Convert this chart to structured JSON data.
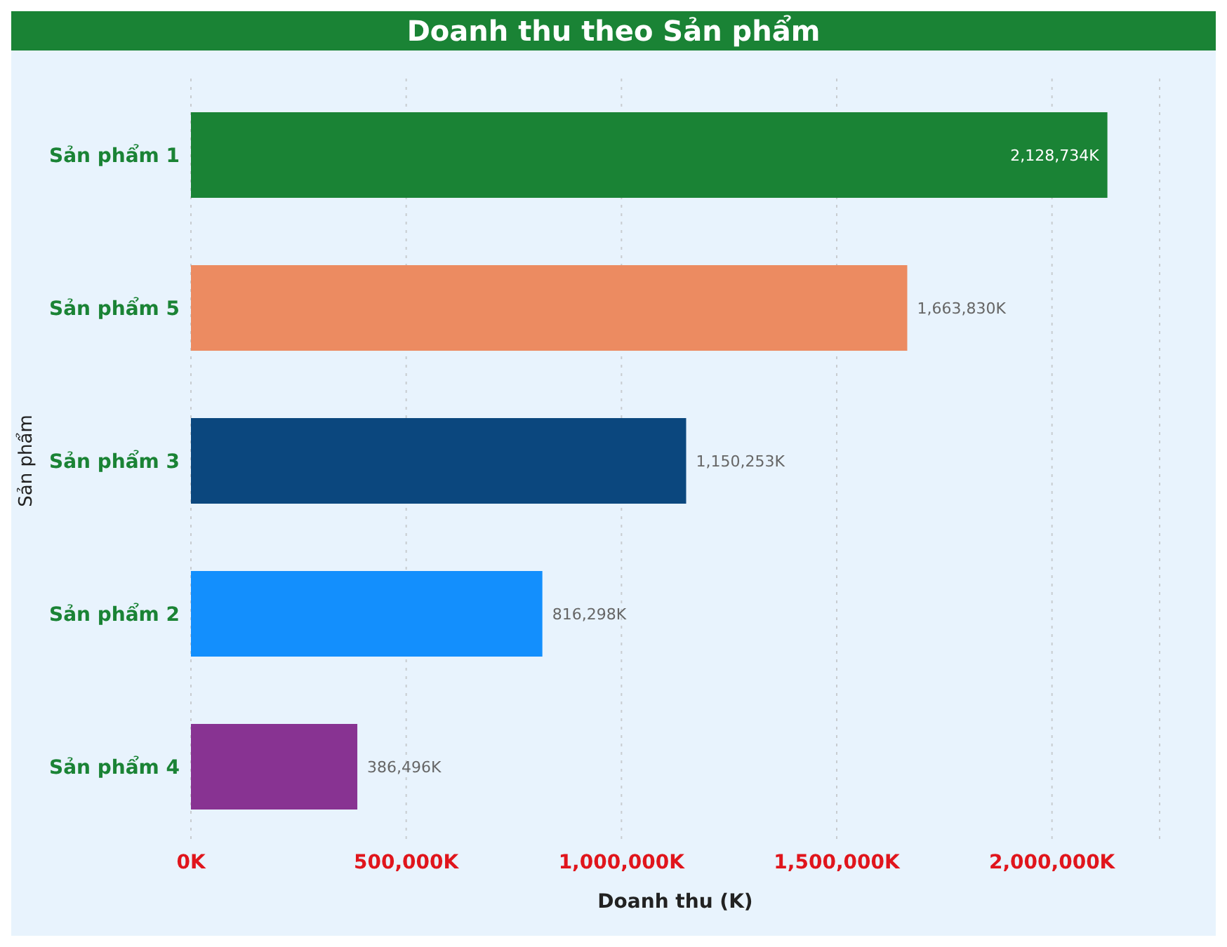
{
  "chart_data": {
    "type": "bar",
    "orientation": "horizontal",
    "title": "Doanh thu theo Sản phẩm",
    "xlabel": "Doanh thu (K)",
    "ylabel": "Sản phẩm",
    "categories": [
      "Sản phẩm 1",
      "Sản phẩm 5",
      "Sản phẩm 3",
      "Sản phẩm 2",
      "Sản phẩm 4"
    ],
    "values": [
      2128734,
      1663830,
      1150253,
      816298,
      386496
    ],
    "colors": [
      "#1a8335",
      "#ec8b61",
      "#0b477e",
      "#138ffd",
      "#883392"
    ],
    "value_labels": [
      "2,128,734K",
      "1,663,830K",
      "1,150,253K",
      "816,298K",
      "386,496K"
    ],
    "xlim": [
      0,
      2250000
    ],
    "xticks": [
      {
        "value": 0,
        "label": "0K"
      },
      {
        "value": 500000,
        "label": "500,000K"
      },
      {
        "value": 1000000,
        "label": "1,000,000K"
      },
      {
        "value": 1500000,
        "label": "1,500,000K"
      },
      {
        "value": 2000000,
        "label": "2,000,000K"
      }
    ],
    "grid": "x",
    "legend": false
  }
}
